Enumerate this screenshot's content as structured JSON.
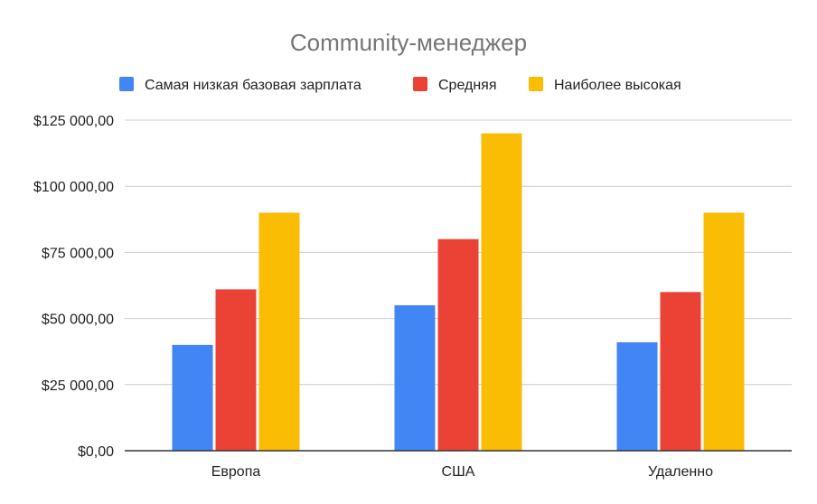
{
  "chart_data": {
    "type": "bar",
    "title": "Community-менеджер",
    "categories": [
      "Европа",
      "США",
      "Удаленно"
    ],
    "series": [
      {
        "name": "Самая низкая базовая зарплата",
        "color": "#4285f4",
        "values": [
          40000,
          55000,
          41000
        ]
      },
      {
        "name": "Средняя",
        "color": "#ea4335",
        "values": [
          61000,
          80000,
          60000
        ]
      },
      {
        "name": "Наиболее высокая",
        "color": "#fbbc04",
        "values": [
          90000,
          120000,
          90000
        ]
      }
    ],
    "ylim": [
      0,
      125000
    ],
    "yticks": [
      0,
      25000,
      50000,
      75000,
      100000,
      125000
    ],
    "ytick_labels": [
      "$0,00",
      "$25 000,00",
      "$50 000,00",
      "$75 000,00",
      "$100 000,00",
      "$125 000,00"
    ],
    "xlabel": "",
    "ylabel": "",
    "grid": true,
    "legend_position": "top"
  }
}
